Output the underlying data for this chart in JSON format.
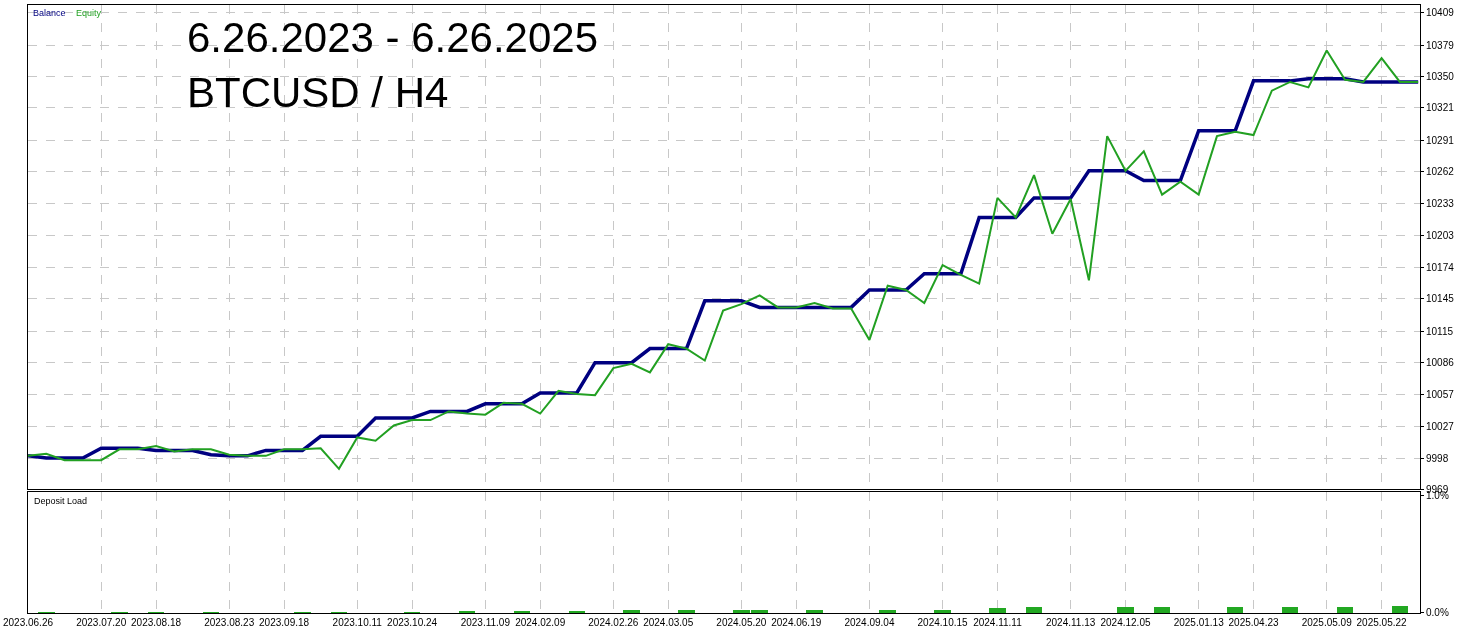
{
  "chart_data": [
    {
      "type": "line",
      "title": "6.26.2023 - 6.26.2025\nBTCUSD / H4",
      "categories": [
        "2023.06.26",
        null,
        null,
        null,
        "2023.07.20",
        null,
        null,
        "2023.08.18",
        null,
        null,
        null,
        "2023.08.23",
        null,
        null,
        "2023.09.18",
        null,
        null,
        null,
        "2023.10.11",
        null,
        null,
        "2023.10.24",
        null,
        null,
        null,
        "2023.11.09",
        null,
        null,
        "2024.02.09",
        null,
        null,
        null,
        "2024.02.26",
        null,
        null,
        "2024.03.05",
        null,
        null,
        null,
        "2024.05.20",
        null,
        null,
        "2024.06.19",
        null,
        null,
        null,
        "2024.09.04",
        null,
        null,
        null,
        "2024.10.15",
        null,
        null,
        "2024.11.11",
        null,
        null,
        null,
        "2024.11.13",
        null,
        null,
        "2024.12.05",
        null,
        null,
        null,
        "2025.01.13",
        null,
        null,
        "2025.04.23",
        null,
        null,
        null,
        "2025.05.09",
        null,
        null,
        "2025.05.22",
        null,
        null
      ],
      "series": [
        {
          "name": "Balance",
          "color": "#000080",
          "values": [
            10000,
            9998,
            9998,
            9998,
            10007,
            10007,
            10007,
            10005,
            10005,
            10005,
            10001,
            10000,
            10000,
            10005,
            10005,
            10005,
            10018,
            10018,
            10018,
            10035,
            10035,
            10035,
            10041,
            10041,
            10041,
            10048,
            10048,
            10048,
            10058,
            10058,
            10058,
            10086,
            10086,
            10086,
            10099,
            10099,
            10099,
            10143,
            10143,
            10143,
            10137,
            10137,
            10137,
            10137,
            10137,
            10137,
            10153,
            10153,
            10153,
            10168,
            10168,
            10168,
            10220,
            10220,
            10220,
            10238,
            10238,
            10238,
            10263,
            10263,
            10263,
            10254,
            10254,
            10254,
            10300,
            10300,
            10300,
            10346,
            10346,
            10346,
            10348,
            10348,
            10348,
            10345,
            10345,
            10345,
            10345
          ]
        },
        {
          "name": "Equity",
          "color": "#22a022",
          "values": [
            10000,
            10002,
            9996,
            9996,
            9996,
            10006,
            10006,
            10009,
            10004,
            10006,
            10006,
            10001,
            10000,
            10000,
            10006,
            10006,
            10007,
            9988,
            10017,
            10014,
            10028,
            10033,
            10033,
            10041,
            10039,
            10038,
            10049,
            10048,
            10039,
            10060,
            10057,
            10056,
            10081,
            10085,
            10077,
            10103,
            10099,
            10088,
            10134,
            10140,
            10148,
            10137,
            10137,
            10141,
            10136,
            10136,
            10107,
            10157,
            10153,
            10141,
            10176,
            10167,
            10159,
            10238,
            10220,
            10259,
            10205,
            10237,
            10162,
            10295,
            10263,
            10281,
            10241,
            10253,
            10241,
            10295,
            10299,
            10296,
            10337,
            10345,
            10340,
            10374,
            10347,
            10345,
            10367,
            10345,
            10345
          ]
        }
      ],
      "ylim": [
        9969,
        10416
      ],
      "yticks": [
        9969,
        9998,
        10027,
        10057,
        10086,
        10115,
        10145,
        10174,
        10203,
        10233,
        10262,
        10291,
        10321,
        10350,
        10379,
        10409
      ],
      "grid": true,
      "tick_labels": "y",
      "line_style": "solid"
    },
    {
      "type": "bar",
      "title": "Deposit Load",
      "categories": [
        "2023.06.26",
        null,
        null,
        null,
        "2023.07.20",
        null,
        null,
        "2023.08.18",
        null,
        null,
        null,
        "2023.08.23",
        null,
        null,
        "2023.09.18",
        null,
        null,
        null,
        "2023.10.11",
        null,
        null,
        "2023.10.24",
        null,
        null,
        null,
        "2023.11.09",
        null,
        null,
        "2024.02.09",
        null,
        null,
        null,
        "2024.02.26",
        null,
        null,
        "2024.03.05",
        null,
        null,
        null,
        "2024.05.20",
        null,
        null,
        "2024.06.19",
        null,
        null,
        null,
        "2024.09.04",
        null,
        null,
        null,
        "2024.10.15",
        null,
        null,
        "2024.11.11",
        null,
        null,
        null,
        "2024.11.13",
        null,
        null,
        "2024.12.05",
        null,
        null,
        null,
        "2025.01.13",
        null,
        null,
        "2025.04.23",
        null,
        null,
        null,
        "2025.05.09",
        null,
        null,
        "2025.05.22",
        null,
        null
      ],
      "values": [
        null,
        0.01,
        null,
        null,
        null,
        0.01,
        null,
        0.01,
        null,
        null,
        0.01,
        null,
        null,
        null,
        null,
        0.01,
        null,
        0.01,
        null,
        null,
        null,
        0.01,
        null,
        null,
        0.02,
        null,
        null,
        0.02,
        null,
        null,
        0.02,
        null,
        null,
        0.03,
        null,
        null,
        0.03,
        null,
        null,
        0.03,
        0.03,
        null,
        null,
        0.03,
        null,
        null,
        null,
        0.03,
        null,
        null,
        0.03,
        null,
        null,
        0.04,
        null,
        0.05,
        null,
        null,
        null,
        null,
        0.05,
        null,
        0.05,
        null,
        null,
        null,
        0.05,
        null,
        null,
        0.05,
        null,
        null,
        0.05,
        null,
        null,
        0.06,
        null
      ],
      "color": "#22a822",
      "ylim": [
        0,
        1.03
      ],
      "yticks": [
        {
          "value": 0,
          "label": "0.0%"
        },
        {
          "value": 1,
          "label": "1.0%"
        }
      ],
      "grid": "x"
    }
  ]
}
